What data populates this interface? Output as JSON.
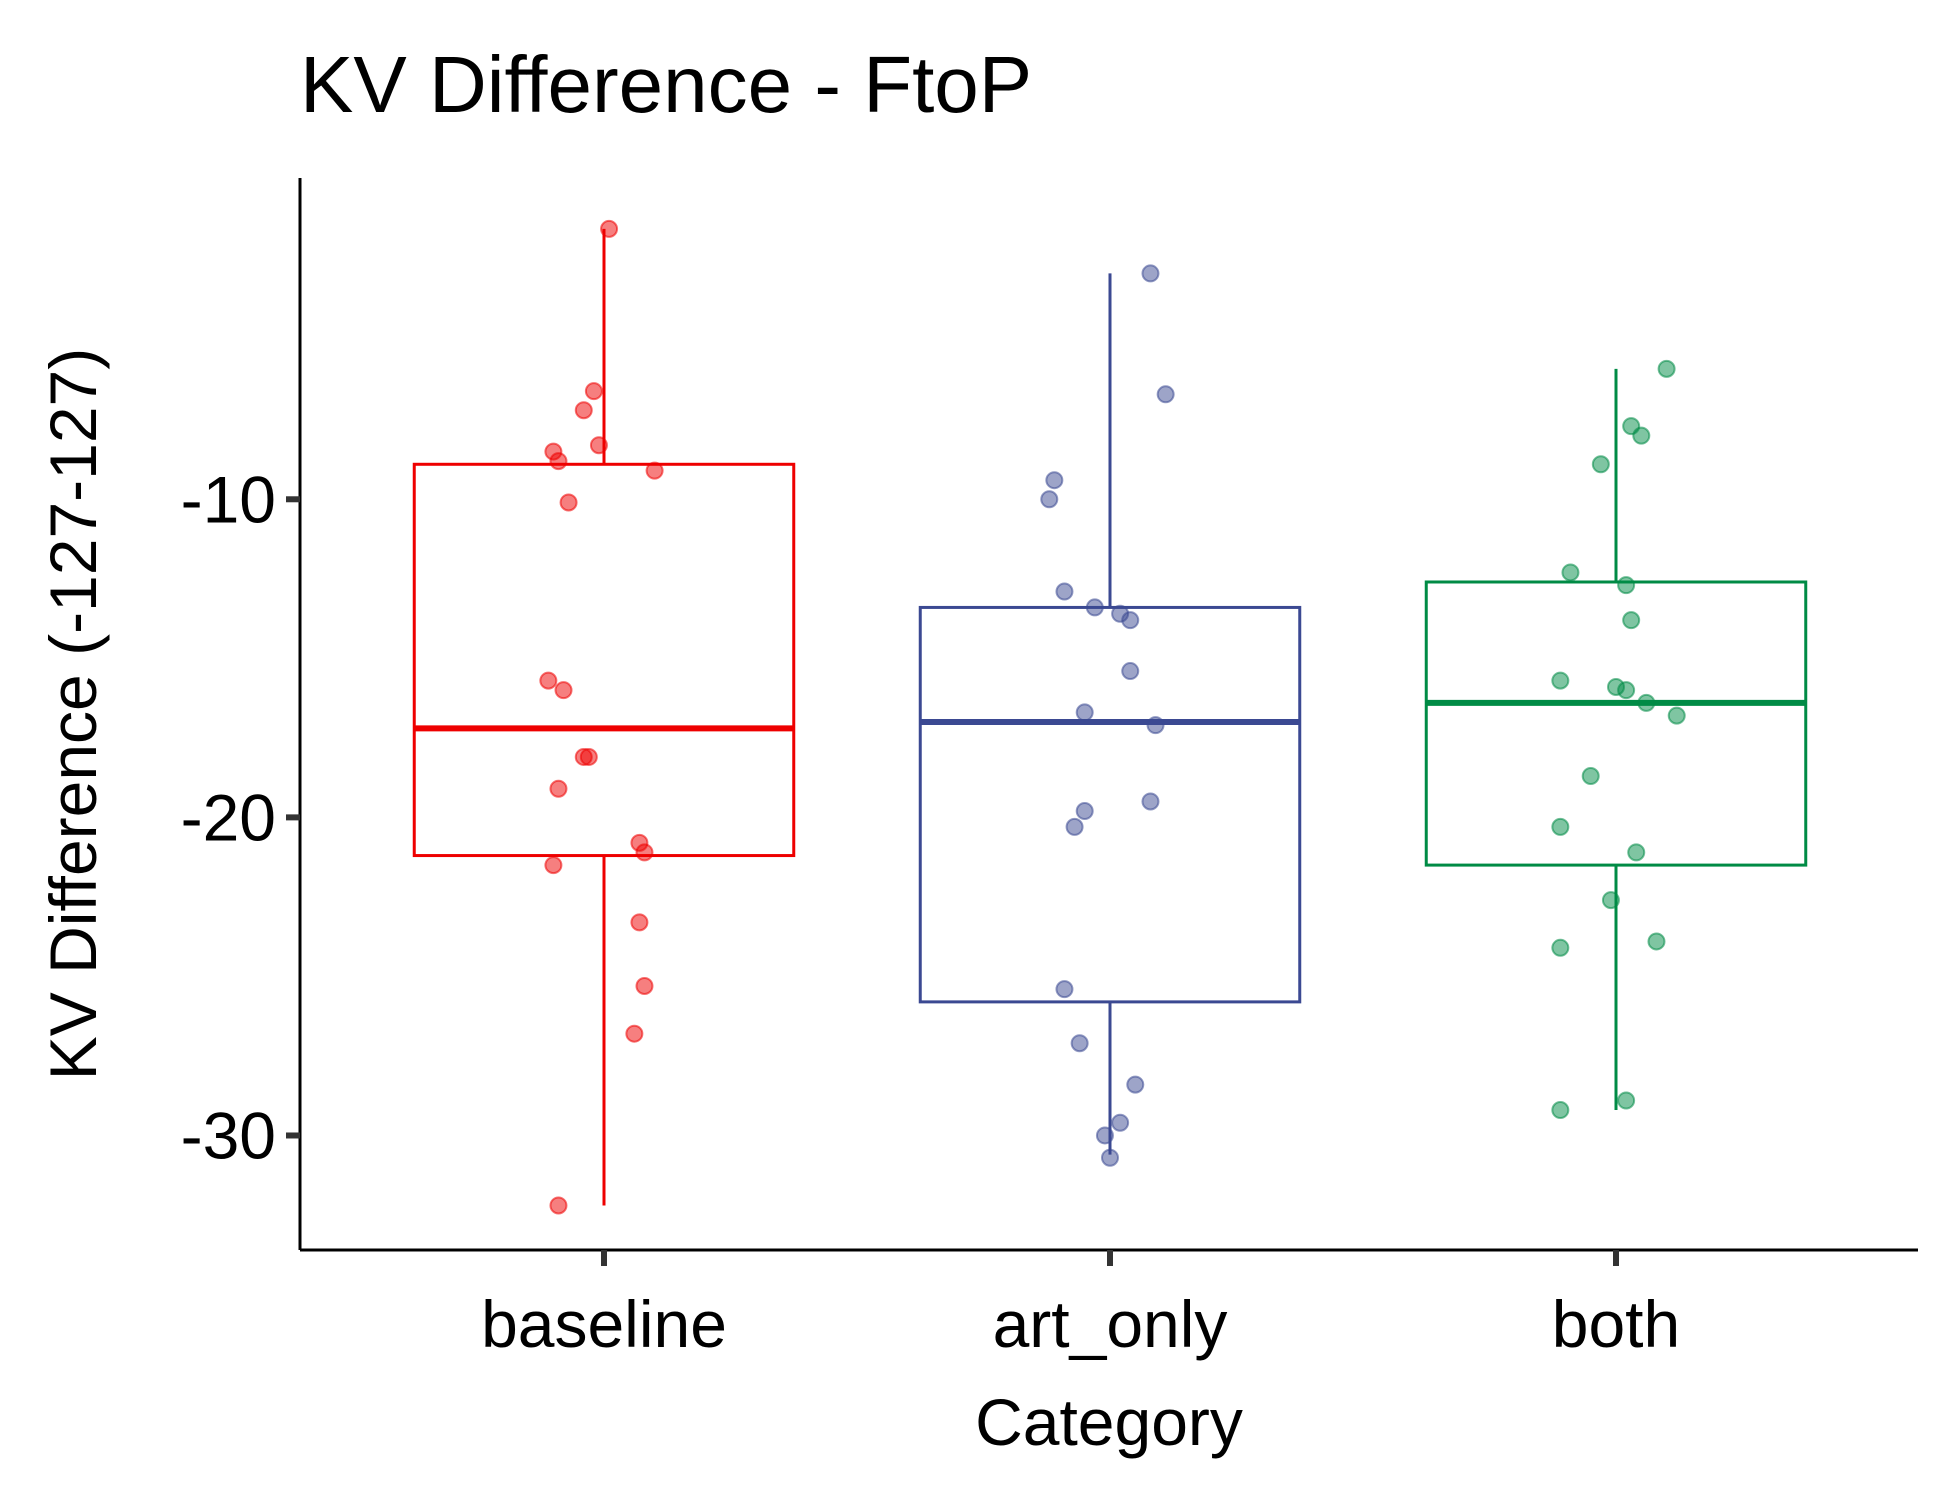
{
  "chart_data": {
    "type": "box",
    "title": "KV Difference - FtoP",
    "xlabel": "Category",
    "ylabel": "KV Difference (-127-127)",
    "ylim": [
      -33.6,
      0.1
    ],
    "yticks": [
      -10,
      -20,
      -30
    ],
    "grid": false,
    "legend": "none",
    "categories": [
      "baseline",
      "art_only",
      "both"
    ],
    "colors": {
      "baseline": "#ee0000",
      "art_only": "#3b4992",
      "both": "#008b45"
    },
    "boxes": [
      {
        "category": "baseline",
        "whisker_low": -32.2,
        "q1": -21.2,
        "median": -17.2,
        "q3": -8.9,
        "whisker_high": -1.5
      },
      {
        "category": "art_only",
        "whisker_low": -30.6,
        "q1": -25.8,
        "median": -17.0,
        "q3": -13.4,
        "whisker_high": -2.9
      },
      {
        "category": "both",
        "whisker_low": -29.2,
        "q1": -21.5,
        "median": -16.4,
        "q3": -12.6,
        "whisker_high": -5.9
      }
    ],
    "points": [
      {
        "category": "baseline",
        "jitter": 0.01,
        "y": -1.5
      },
      {
        "category": "baseline",
        "jitter": -0.02,
        "y": -6.6
      },
      {
        "category": "baseline",
        "jitter": -0.04,
        "y": -7.2
      },
      {
        "category": "baseline",
        "jitter": -0.01,
        "y": -8.3
      },
      {
        "category": "baseline",
        "jitter": -0.1,
        "y": -8.5
      },
      {
        "category": "baseline",
        "jitter": -0.09,
        "y": -8.8
      },
      {
        "category": "baseline",
        "jitter": 0.1,
        "y": -9.1
      },
      {
        "category": "baseline",
        "jitter": -0.07,
        "y": -10.1
      },
      {
        "category": "baseline",
        "jitter": -0.11,
        "y": -15.7
      },
      {
        "category": "baseline",
        "jitter": -0.08,
        "y": -16.0
      },
      {
        "category": "baseline",
        "jitter": -0.04,
        "y": -18.1
      },
      {
        "category": "baseline",
        "jitter": -0.03,
        "y": -18.1
      },
      {
        "category": "baseline",
        "jitter": -0.09,
        "y": -19.1
      },
      {
        "category": "baseline",
        "jitter": 0.07,
        "y": -20.8
      },
      {
        "category": "baseline",
        "jitter": 0.08,
        "y": -21.1
      },
      {
        "category": "baseline",
        "jitter": -0.1,
        "y": -21.5
      },
      {
        "category": "baseline",
        "jitter": 0.07,
        "y": -23.3
      },
      {
        "category": "baseline",
        "jitter": 0.08,
        "y": -25.3
      },
      {
        "category": "baseline",
        "jitter": 0.06,
        "y": -26.8
      },
      {
        "category": "baseline",
        "jitter": -0.09,
        "y": -32.2
      },
      {
        "category": "art_only",
        "jitter": 0.08,
        "y": -2.9
      },
      {
        "category": "art_only",
        "jitter": 0.11,
        "y": -6.7
      },
      {
        "category": "art_only",
        "jitter": -0.11,
        "y": -9.4
      },
      {
        "category": "art_only",
        "jitter": -0.12,
        "y": -10.0
      },
      {
        "category": "art_only",
        "jitter": -0.09,
        "y": -12.9
      },
      {
        "category": "art_only",
        "jitter": -0.03,
        "y": -13.4
      },
      {
        "category": "art_only",
        "jitter": 0.02,
        "y": -13.6
      },
      {
        "category": "art_only",
        "jitter": 0.04,
        "y": -13.8
      },
      {
        "category": "art_only",
        "jitter": 0.04,
        "y": -15.4
      },
      {
        "category": "art_only",
        "jitter": -0.05,
        "y": -16.7
      },
      {
        "category": "art_only",
        "jitter": 0.09,
        "y": -17.1
      },
      {
        "category": "art_only",
        "jitter": 0.08,
        "y": -19.5
      },
      {
        "category": "art_only",
        "jitter": -0.05,
        "y": -19.8
      },
      {
        "category": "art_only",
        "jitter": -0.07,
        "y": -20.3
      },
      {
        "category": "art_only",
        "jitter": -0.09,
        "y": -25.4
      },
      {
        "category": "art_only",
        "jitter": -0.06,
        "y": -27.1
      },
      {
        "category": "art_only",
        "jitter": 0.05,
        "y": -28.4
      },
      {
        "category": "art_only",
        "jitter": 0.02,
        "y": -29.6
      },
      {
        "category": "art_only",
        "jitter": -0.01,
        "y": -30.0
      },
      {
        "category": "art_only",
        "jitter": 0.0,
        "y": -30.7
      },
      {
        "category": "both",
        "jitter": 0.1,
        "y": -5.9
      },
      {
        "category": "both",
        "jitter": 0.03,
        "y": -7.7
      },
      {
        "category": "both",
        "jitter": 0.05,
        "y": -8.0
      },
      {
        "category": "both",
        "jitter": -0.03,
        "y": -8.9
      },
      {
        "category": "both",
        "jitter": -0.09,
        "y": -12.3
      },
      {
        "category": "both",
        "jitter": 0.02,
        "y": -12.7
      },
      {
        "category": "both",
        "jitter": 0.03,
        "y": -13.8
      },
      {
        "category": "both",
        "jitter": -0.11,
        "y": -15.7
      },
      {
        "category": "both",
        "jitter": 0.0,
        "y": -15.9
      },
      {
        "category": "both",
        "jitter": 0.02,
        "y": -16.0
      },
      {
        "category": "both",
        "jitter": 0.06,
        "y": -16.4
      },
      {
        "category": "both",
        "jitter": 0.12,
        "y": -16.8
      },
      {
        "category": "both",
        "jitter": -0.05,
        "y": -18.7
      },
      {
        "category": "both",
        "jitter": -0.11,
        "y": -20.3
      },
      {
        "category": "both",
        "jitter": 0.04,
        "y": -21.1
      },
      {
        "category": "both",
        "jitter": -0.01,
        "y": -22.6
      },
      {
        "category": "both",
        "jitter": 0.08,
        "y": -23.9
      },
      {
        "category": "both",
        "jitter": -0.11,
        "y": -24.1
      },
      {
        "category": "both",
        "jitter": 0.02,
        "y": -28.9
      },
      {
        "category": "both",
        "jitter": -0.11,
        "y": -29.2
      }
    ]
  }
}
